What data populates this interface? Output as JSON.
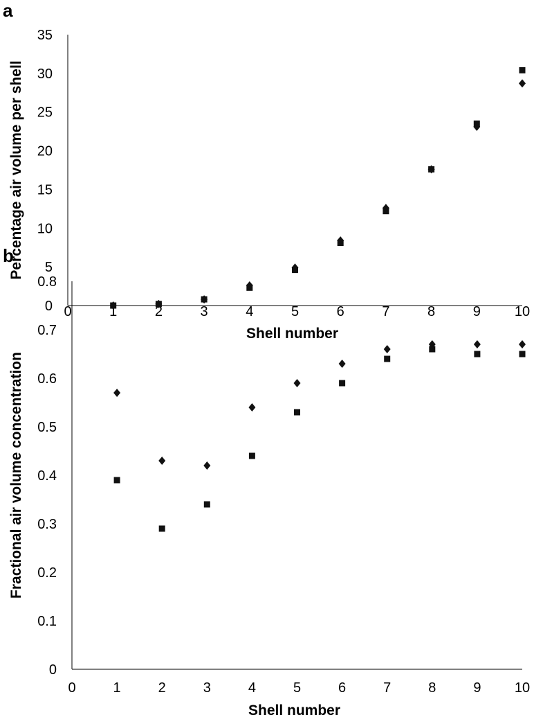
{
  "chart_data": [
    {
      "panel": "a",
      "type": "scatter",
      "xlabel": "Shell number",
      "ylabel": "Percentage air volume per shell",
      "xlim": [
        0,
        10
      ],
      "ylim": [
        0,
        35
      ],
      "xticks": [
        "0",
        "1",
        "2",
        "3",
        "4",
        "5",
        "6",
        "7",
        "8",
        "9",
        "10"
      ],
      "yticks": [
        "0",
        "5",
        "10",
        "15",
        "20",
        "25",
        "30",
        "35"
      ],
      "grid": false,
      "series": [
        {
          "marker": "square",
          "x": [
            1,
            2,
            3,
            4,
            5,
            6,
            7,
            8,
            9,
            10
          ],
          "y": [
            0.0,
            0.2,
            0.8,
            2.3,
            4.6,
            8.1,
            12.2,
            17.6,
            23.5,
            30.4
          ]
        },
        {
          "marker": "diamond",
          "x": [
            1,
            2,
            3,
            4,
            5,
            6,
            7,
            8,
            9,
            10
          ],
          "y": [
            0.0,
            0.2,
            0.8,
            2.6,
            4.9,
            8.4,
            12.6,
            17.6,
            23.1,
            28.7
          ]
        }
      ]
    },
    {
      "panel": "b",
      "type": "scatter",
      "xlabel": "Shell number",
      "ylabel": "Fractional air volume concentration",
      "xlim": [
        0,
        10
      ],
      "ylim": [
        0,
        0.8
      ],
      "xticks": [
        "0",
        "1",
        "2",
        "3",
        "4",
        "5",
        "6",
        "7",
        "8",
        "9",
        "10"
      ],
      "yticks": [
        "0",
        "0.1",
        "0.2",
        "0.3",
        "0.4",
        "0.5",
        "0.6",
        "0.7",
        "0.8"
      ],
      "grid": false,
      "series": [
        {
          "marker": "square",
          "x": [
            1,
            2,
            3,
            4,
            5,
            6,
            7,
            8,
            9,
            10
          ],
          "y": [
            0.39,
            0.29,
            0.34,
            0.44,
            0.53,
            0.59,
            0.64,
            0.66,
            0.65,
            0.65
          ]
        },
        {
          "marker": "diamond",
          "x": [
            1,
            2,
            3,
            4,
            5,
            6,
            7,
            8,
            9,
            10
          ],
          "y": [
            0.57,
            0.43,
            0.42,
            0.54,
            0.59,
            0.63,
            0.66,
            0.67,
            0.67,
            0.67
          ]
        }
      ]
    }
  ]
}
